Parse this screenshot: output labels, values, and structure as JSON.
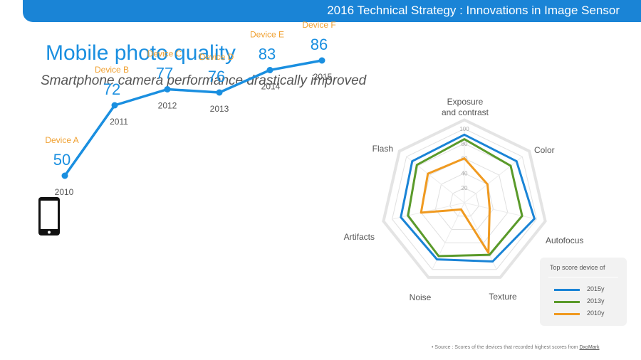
{
  "header": {
    "title": "2016 Technical Strategy : Innovations in Image Sensor"
  },
  "page": {
    "title": "Mobile photo quality",
    "subtitle": "Smartphone camera performance drastically improved"
  },
  "icons": {
    "device": "smartphone-icon"
  },
  "colors": {
    "accent": "#1a8fe0",
    "header": "#1a84d6",
    "device_label": "#f0a030",
    "line": "#1a8fe0",
    "s2015": "#1a84d6",
    "s2013": "#5a9a2a",
    "s2010": "#f09a20"
  },
  "chart_data": [
    {
      "type": "line",
      "x": [
        "2010",
        "2011",
        "2012",
        "2013",
        "2014",
        "2015"
      ],
      "devices": [
        "Device A",
        "Device B",
        "Device C",
        "Device D",
        "Device E",
        "Device F"
      ],
      "values": [
        50,
        72,
        77,
        76,
        83,
        86
      ],
      "title": "",
      "xlabel": "",
      "ylabel": "",
      "ylim": [
        40,
        90
      ],
      "grid": false
    },
    {
      "type": "radar",
      "axes": [
        "Exposure\nand contrast",
        "Color",
        "Autofocus",
        "Texture",
        "Noise",
        "Artifacts",
        "Flash"
      ],
      "ticks": [
        20,
        40,
        60,
        80,
        100
      ],
      "rmax": 100,
      "legend_title": "Top score device of",
      "legend_position": "bottom-right",
      "series": [
        {
          "name": "2015y",
          "values": [
            92,
            90,
            97,
            88,
            85,
            88,
            90
          ]
        },
        {
          "name": "2013y",
          "values": [
            86,
            80,
            80,
            78,
            80,
            78,
            82
          ]
        },
        {
          "name": "2010y",
          "values": [
            60,
            40,
            35,
            75,
            10,
            60,
            63
          ]
        }
      ]
    }
  ],
  "source": {
    "prefix": "• Source : Scores of the devices that recorded highest scores from ",
    "link": "DxoMark"
  }
}
